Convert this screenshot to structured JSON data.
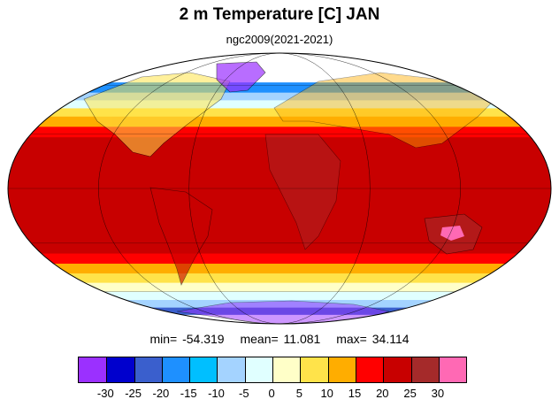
{
  "title": "2 m Temperature [C] JAN",
  "subtitle": "ngc2009(2021-2021)",
  "stats": {
    "min": "min= -54.319",
    "mean": "mean= 11.081",
    "max": "max= 34.114"
  },
  "colorbar": {
    "colors": [
      "#9b30ff",
      "#0000cd",
      "#3a5fcd",
      "#1e90ff",
      "#00bfff",
      "#a4d3ff",
      "#e0ffff",
      "#ffffc8",
      "#ffe34a",
      "#ffad00",
      "#ff0000",
      "#c80000",
      "#a52a2a",
      "#ff69b4"
    ],
    "ticks": [
      "-30",
      "-25",
      "-20",
      "-15",
      "-10",
      "-5",
      "0",
      "5",
      "10",
      "15",
      "20",
      "25",
      "30"
    ]
  },
  "map": {
    "projection": "mollweide",
    "bands": [
      {
        "lat_from": 90,
        "lat_to": 62,
        "color": "#9b30ff"
      },
      {
        "lat_from": 62,
        "lat_to": 55,
        "color": "#1e90ff"
      },
      {
        "lat_from": 55,
        "lat_to": 50,
        "color": "#a4d3ff"
      },
      {
        "lat_from": 50,
        "lat_to": 45,
        "color": "#e0ffff"
      },
      {
        "lat_from": 45,
        "lat_to": 40,
        "color": "#ffe34a"
      },
      {
        "lat_from": 40,
        "lat_to": 34,
        "color": "#ffad00"
      },
      {
        "lat_from": 34,
        "lat_to": 28,
        "color": "#ff0000"
      },
      {
        "lat_from": 28,
        "lat_to": -20,
        "color": "#c80000"
      },
      {
        "lat_from": -20,
        "lat_to": -36,
        "color": "#c80000"
      },
      {
        "lat_from": -36,
        "lat_to": -42,
        "color": "#ff0000"
      },
      {
        "lat_from": -42,
        "lat_to": -48,
        "color": "#ffad00"
      },
      {
        "lat_from": -48,
        "lat_to": -54,
        "color": "#ffe34a"
      },
      {
        "lat_from": -54,
        "lat_to": -60,
        "color": "#ffffc8"
      },
      {
        "lat_from": -60,
        "lat_to": -66,
        "color": "#e0ffff"
      },
      {
        "lat_from": -66,
        "lat_to": -72,
        "color": "#a4d3ff"
      },
      {
        "lat_from": -72,
        "lat_to": -78,
        "color": "#3a5fcd"
      },
      {
        "lat_from": -78,
        "lat_to": -90,
        "color": "#9b30ff"
      }
    ],
    "grid_lats": [
      -60,
      -30,
      0,
      30,
      60
    ],
    "grid_lons": [
      -180,
      -120,
      -60,
      0,
      60,
      120,
      180
    ]
  }
}
